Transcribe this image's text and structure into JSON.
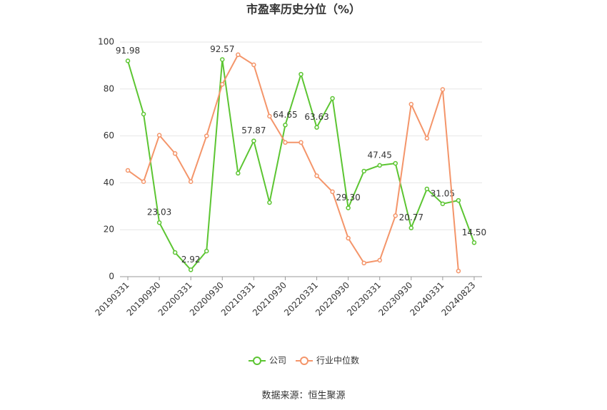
{
  "chart_data": {
    "type": "line",
    "title": "市盈率历史分位（%）",
    "categories": [
      "20190331",
      null,
      "20190930",
      null,
      "20200331",
      null,
      "20200930",
      null,
      "20210331",
      null,
      "20210930",
      null,
      "20220331",
      null,
      "20220930",
      null,
      "20230331",
      null,
      "20230930",
      null,
      "20240331",
      null,
      "20240823"
    ],
    "series": [
      {
        "name": "公司",
        "color": "#5cc532",
        "values": [
          91.98,
          69.3,
          23.03,
          10.3,
          2.92,
          10.9,
          92.57,
          44.1,
          57.87,
          31.6,
          64.65,
          86.3,
          63.63,
          76,
          29.3,
          45,
          47.45,
          48.3,
          20.77,
          37.4,
          31.05,
          32.5,
          14.5
        ],
        "value_labels": [
          "91.98",
          null,
          "23.03",
          null,
          "2.92",
          null,
          "92.57",
          null,
          "57.87",
          null,
          "64.65",
          null,
          "63.63",
          null,
          "29.30",
          null,
          "47.45",
          null,
          "20.77",
          null,
          "31.05",
          null,
          "14.50"
        ]
      },
      {
        "name": "行业中位数",
        "color": "#f4956a",
        "values": [
          45.3,
          40.5,
          60.3,
          52.5,
          40.5,
          60,
          82,
          94.6,
          90.3,
          68.4,
          57.2,
          57.2,
          43,
          36.2,
          16.4,
          5.8,
          7,
          26,
          73.5,
          59,
          79.8,
          2.4,
          null
        ]
      }
    ],
    "ylim": [
      0,
      100
    ],
    "yticks": [
      0,
      20,
      40,
      60,
      80,
      100
    ],
    "grid": true,
    "legend": "bottom",
    "source": "数据来源：恒生聚源"
  }
}
